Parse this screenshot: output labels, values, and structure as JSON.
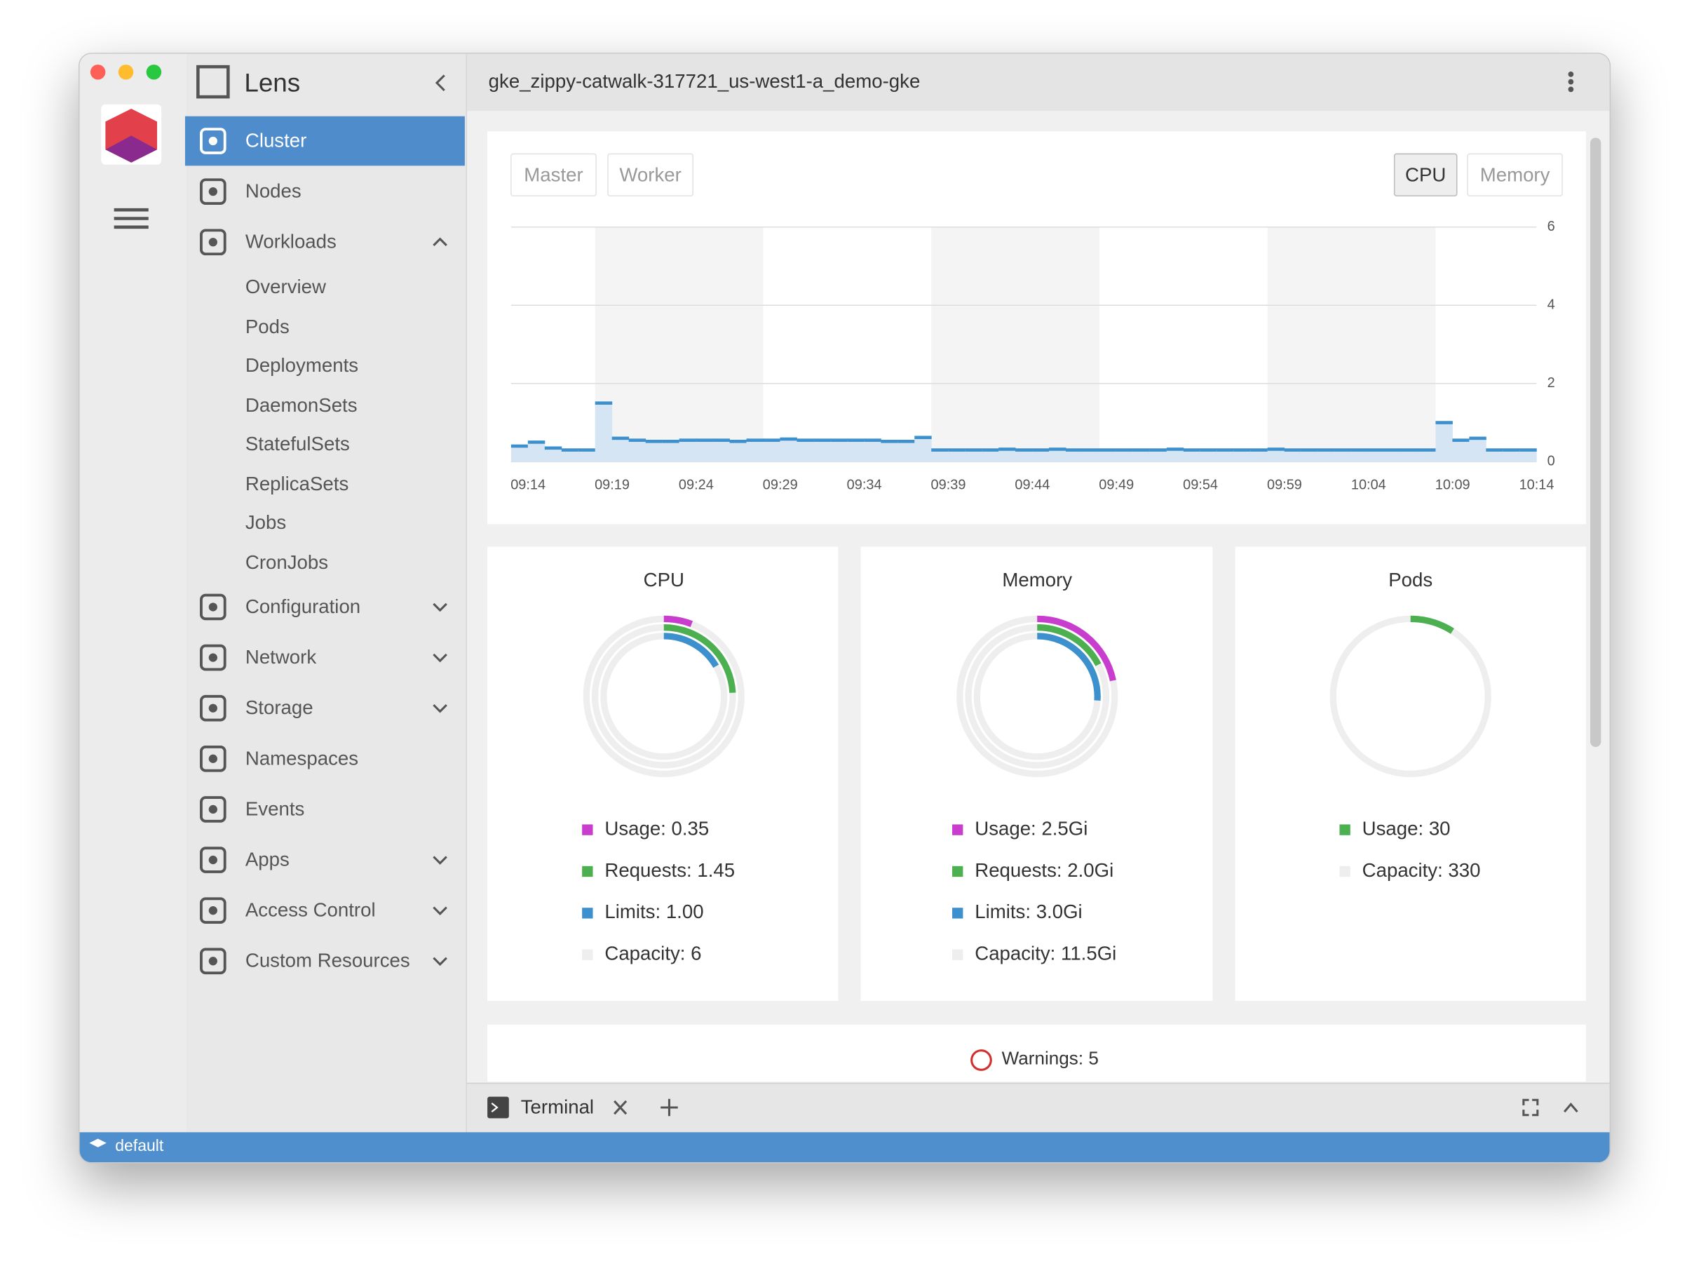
{
  "window": {
    "title": "gke_zippy-catwalk-317721_us-west1-a_demo-gke"
  },
  "sidebar": {
    "app_name": "Lens",
    "items": [
      {
        "label": "Cluster",
        "active": true
      },
      {
        "label": "Nodes"
      },
      {
        "label": "Workloads",
        "expandable": true,
        "expanded": true,
        "children": [
          "Overview",
          "Pods",
          "Deployments",
          "DaemonSets",
          "StatefulSets",
          "ReplicaSets",
          "Jobs",
          "CronJobs"
        ]
      },
      {
        "label": "Configuration",
        "expandable": true
      },
      {
        "label": "Network",
        "expandable": true
      },
      {
        "label": "Storage",
        "expandable": true
      },
      {
        "label": "Namespaces"
      },
      {
        "label": "Events"
      },
      {
        "label": "Apps",
        "expandable": true
      },
      {
        "label": "Access Control",
        "expandable": true
      },
      {
        "label": "Custom Resources",
        "expandable": true
      }
    ]
  },
  "metrics_tabs": {
    "left": [
      "Master",
      "Worker"
    ],
    "right": [
      "CPU",
      "Memory"
    ],
    "selected_right": 0
  },
  "chart_data": [
    {
      "type": "area",
      "color": "#3d90ce",
      "categories": [
        "09:14",
        null,
        null,
        null,
        null,
        "09:19",
        null,
        null,
        null,
        null,
        "09:24",
        null,
        null,
        null,
        null,
        "09:29",
        null,
        null,
        null,
        null,
        "09:34",
        null,
        null,
        null,
        null,
        "09:39",
        null,
        null,
        null,
        null,
        "09:44",
        null,
        null,
        null,
        null,
        "09:49",
        null,
        null,
        null,
        null,
        "09:54",
        null,
        null,
        null,
        null,
        "09:59",
        null,
        null,
        null,
        null,
        "10:04",
        null,
        null,
        null,
        null,
        "10:09",
        null,
        null,
        null,
        null,
        "10:14"
      ],
      "values": [
        0.4,
        0.5,
        0.35,
        0.3,
        0.3,
        1.5,
        0.6,
        0.55,
        0.52,
        0.52,
        0.55,
        0.55,
        0.55,
        0.52,
        0.55,
        0.55,
        0.58,
        0.55,
        0.55,
        0.55,
        0.55,
        0.55,
        0.52,
        0.52,
        0.62,
        0.3,
        0.3,
        0.3,
        0.3,
        0.32,
        0.3,
        0.3,
        0.32,
        0.3,
        0.3,
        0.3,
        0.3,
        0.3,
        0.3,
        0.32,
        0.3,
        0.3,
        0.3,
        0.3,
        0.3,
        0.32,
        0.3,
        0.3,
        0.3,
        0.3,
        0.3,
        0.3,
        0.3,
        0.3,
        0.3,
        1.0,
        0.55,
        0.6,
        0.3,
        0.3,
        0.3
      ],
      "ylim": [
        0,
        6
      ],
      "yticks": [
        0,
        2,
        4,
        6
      ],
      "grid": true
    },
    {
      "type": "pie",
      "title": "CPU",
      "series": [
        {
          "name": "Usage: 0.35",
          "value": 0.35,
          "color": "#c93dce"
        },
        {
          "name": "Requests: 1.45",
          "value": 1.45,
          "color": "#4caf50"
        },
        {
          "name": "Limits: 1.00",
          "value": 1.0,
          "color": "#3d90ce"
        }
      ],
      "total": {
        "name": "Capacity: 6",
        "value": 6,
        "color": "#eeeeee"
      }
    },
    {
      "type": "pie",
      "title": "Memory",
      "series": [
        {
          "name": "Usage: 2.5Gi",
          "value": 2.5,
          "color": "#c93dce"
        },
        {
          "name": "Requests: 2.0Gi",
          "value": 2.0,
          "color": "#4caf50"
        },
        {
          "name": "Limits: 3.0Gi",
          "value": 3.0,
          "color": "#3d90ce"
        }
      ],
      "total": {
        "name": "Capacity: 11.5Gi",
        "value": 11.5,
        "color": "#eeeeee"
      }
    },
    {
      "type": "pie",
      "title": "Pods",
      "series": [
        {
          "name": "Usage: 30",
          "value": 30,
          "color": "#4caf50"
        }
      ],
      "total": {
        "name": "Capacity: 330",
        "value": 330,
        "color": "#eeeeee"
      }
    }
  ],
  "warnings": "Warnings: 5",
  "dock": {
    "tab": "Terminal"
  },
  "status_bar": {
    "namespace": "default"
  }
}
